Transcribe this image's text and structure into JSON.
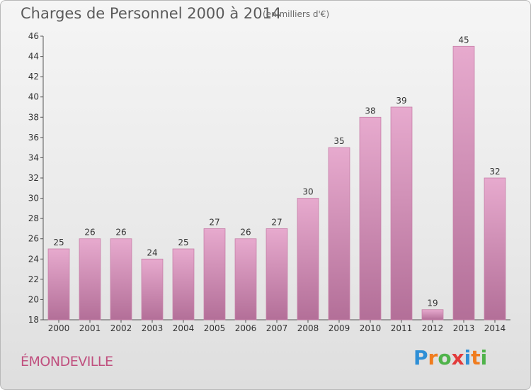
{
  "header": {
    "title": "Charges de Personnel 2000 à 2014",
    "subtitle": "(en milliers d'€)"
  },
  "footer": {
    "town": "ÉMONDEVILLE",
    "logo": [
      "P",
      "r",
      "o",
      "x",
      "i",
      "t",
      "i"
    ],
    "logo_colors": [
      "#2e8fd6",
      "#f07c1e",
      "#4fb34a",
      "#e23b3b",
      "#2e8fd6",
      "#f07c1e",
      "#4fb34a"
    ]
  },
  "chart_data": {
    "type": "bar",
    "categories": [
      "2000",
      "2001",
      "2002",
      "2003",
      "2004",
      "2005",
      "2006",
      "2007",
      "2008",
      "2009",
      "2010",
      "2011",
      "2012",
      "2013",
      "2014"
    ],
    "values": [
      25,
      26,
      26,
      24,
      25,
      27,
      26,
      27,
      30,
      35,
      38,
      39,
      19,
      45,
      32
    ],
    "ylim": [
      18,
      46
    ],
    "yticks": [
      18,
      20,
      22,
      24,
      26,
      28,
      30,
      32,
      34,
      36,
      38,
      40,
      42,
      44,
      46
    ],
    "grid": false,
    "bar_color": "#d98fb5"
  }
}
